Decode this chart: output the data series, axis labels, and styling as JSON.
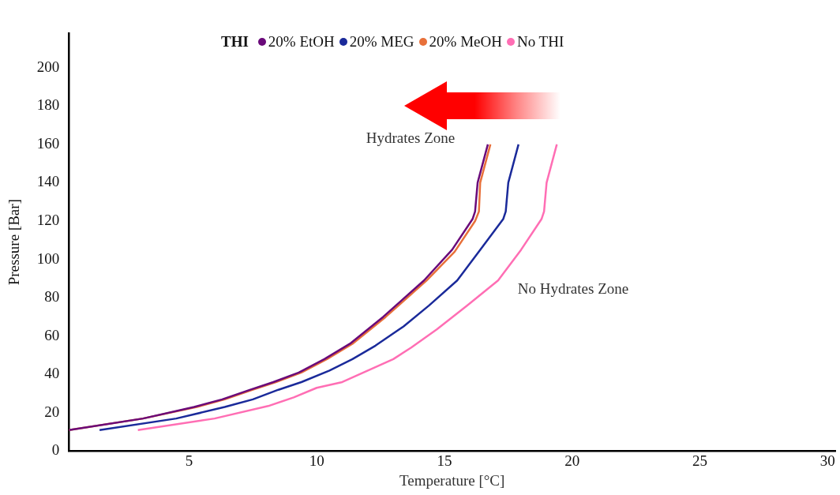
{
  "chart_data": {
    "type": "line",
    "xlabel": "Temperature [°C]",
    "ylabel": "Pressure [Bar]",
    "legend_title": "THI",
    "legend": "top",
    "grid": false,
    "marker": "none",
    "line_style": "solid",
    "xlim": [
      0.3,
      30.3
    ],
    "xticks": [
      5,
      10,
      15,
      20,
      25,
      30
    ],
    "ylim": [
      0,
      218
    ],
    "yticks": [
      0,
      20,
      40,
      60,
      80,
      100,
      120,
      140,
      160,
      180,
      200
    ],
    "annotations": [
      "Hydrates Zone",
      "No Hydrates Zone"
    ],
    "series": [
      {
        "name": "20% EtOH",
        "color": "#6a0a7a",
        "x": [
          0.3,
          3.2,
          5.2,
          6.3,
          7.4,
          8.3,
          9.3,
          10.3,
          11.3,
          12.6,
          14.2,
          15.3,
          16.1,
          16.2,
          16.3,
          16.7
        ],
        "values": [
          11,
          17,
          23,
          27,
          32,
          36,
          41,
          48,
          56,
          70,
          89,
          105,
          121,
          125,
          140,
          160
        ]
      },
      {
        "name": "20% MEG",
        "color": "#1a2a9a",
        "x": [
          1.5,
          4.5,
          6.4,
          7.5,
          8.5,
          9.4,
          10.5,
          11.4,
          12.3,
          13.4,
          14.4,
          15.5,
          16.4,
          17.3,
          17.4,
          17.5,
          17.9
        ],
        "values": [
          11,
          17,
          23,
          27,
          32,
          36,
          42,
          48,
          55,
          65,
          76,
          89,
          105,
          121,
          125,
          140,
          160
        ]
      },
      {
        "name": "20% MeOH",
        "color": "#e8703a",
        "x": [
          0.3,
          3.2,
          5.3,
          6.4,
          7.5,
          8.4,
          9.4,
          10.4,
          11.4,
          12.7,
          14.3,
          15.4,
          16.2,
          16.35,
          16.4,
          16.8
        ],
        "values": [
          11,
          17,
          23,
          27,
          32,
          36,
          41,
          48,
          56,
          70,
          89,
          104,
          120,
          125,
          140,
          160
        ]
      },
      {
        "name": "No THI",
        "color": "#ff6eb4",
        "x": [
          3.0,
          6.0,
          8.1,
          9.1,
          10.0,
          11.0,
          12.0,
          13.0,
          13.7,
          14.7,
          15.9,
          17.1,
          18.0,
          18.8,
          18.9,
          19.0,
          19.4
        ],
        "values": [
          11,
          17,
          23.5,
          28,
          33,
          36,
          42,
          48,
          54,
          63.5,
          76,
          89,
          105,
          121,
          125,
          140,
          160
        ]
      }
    ]
  }
}
